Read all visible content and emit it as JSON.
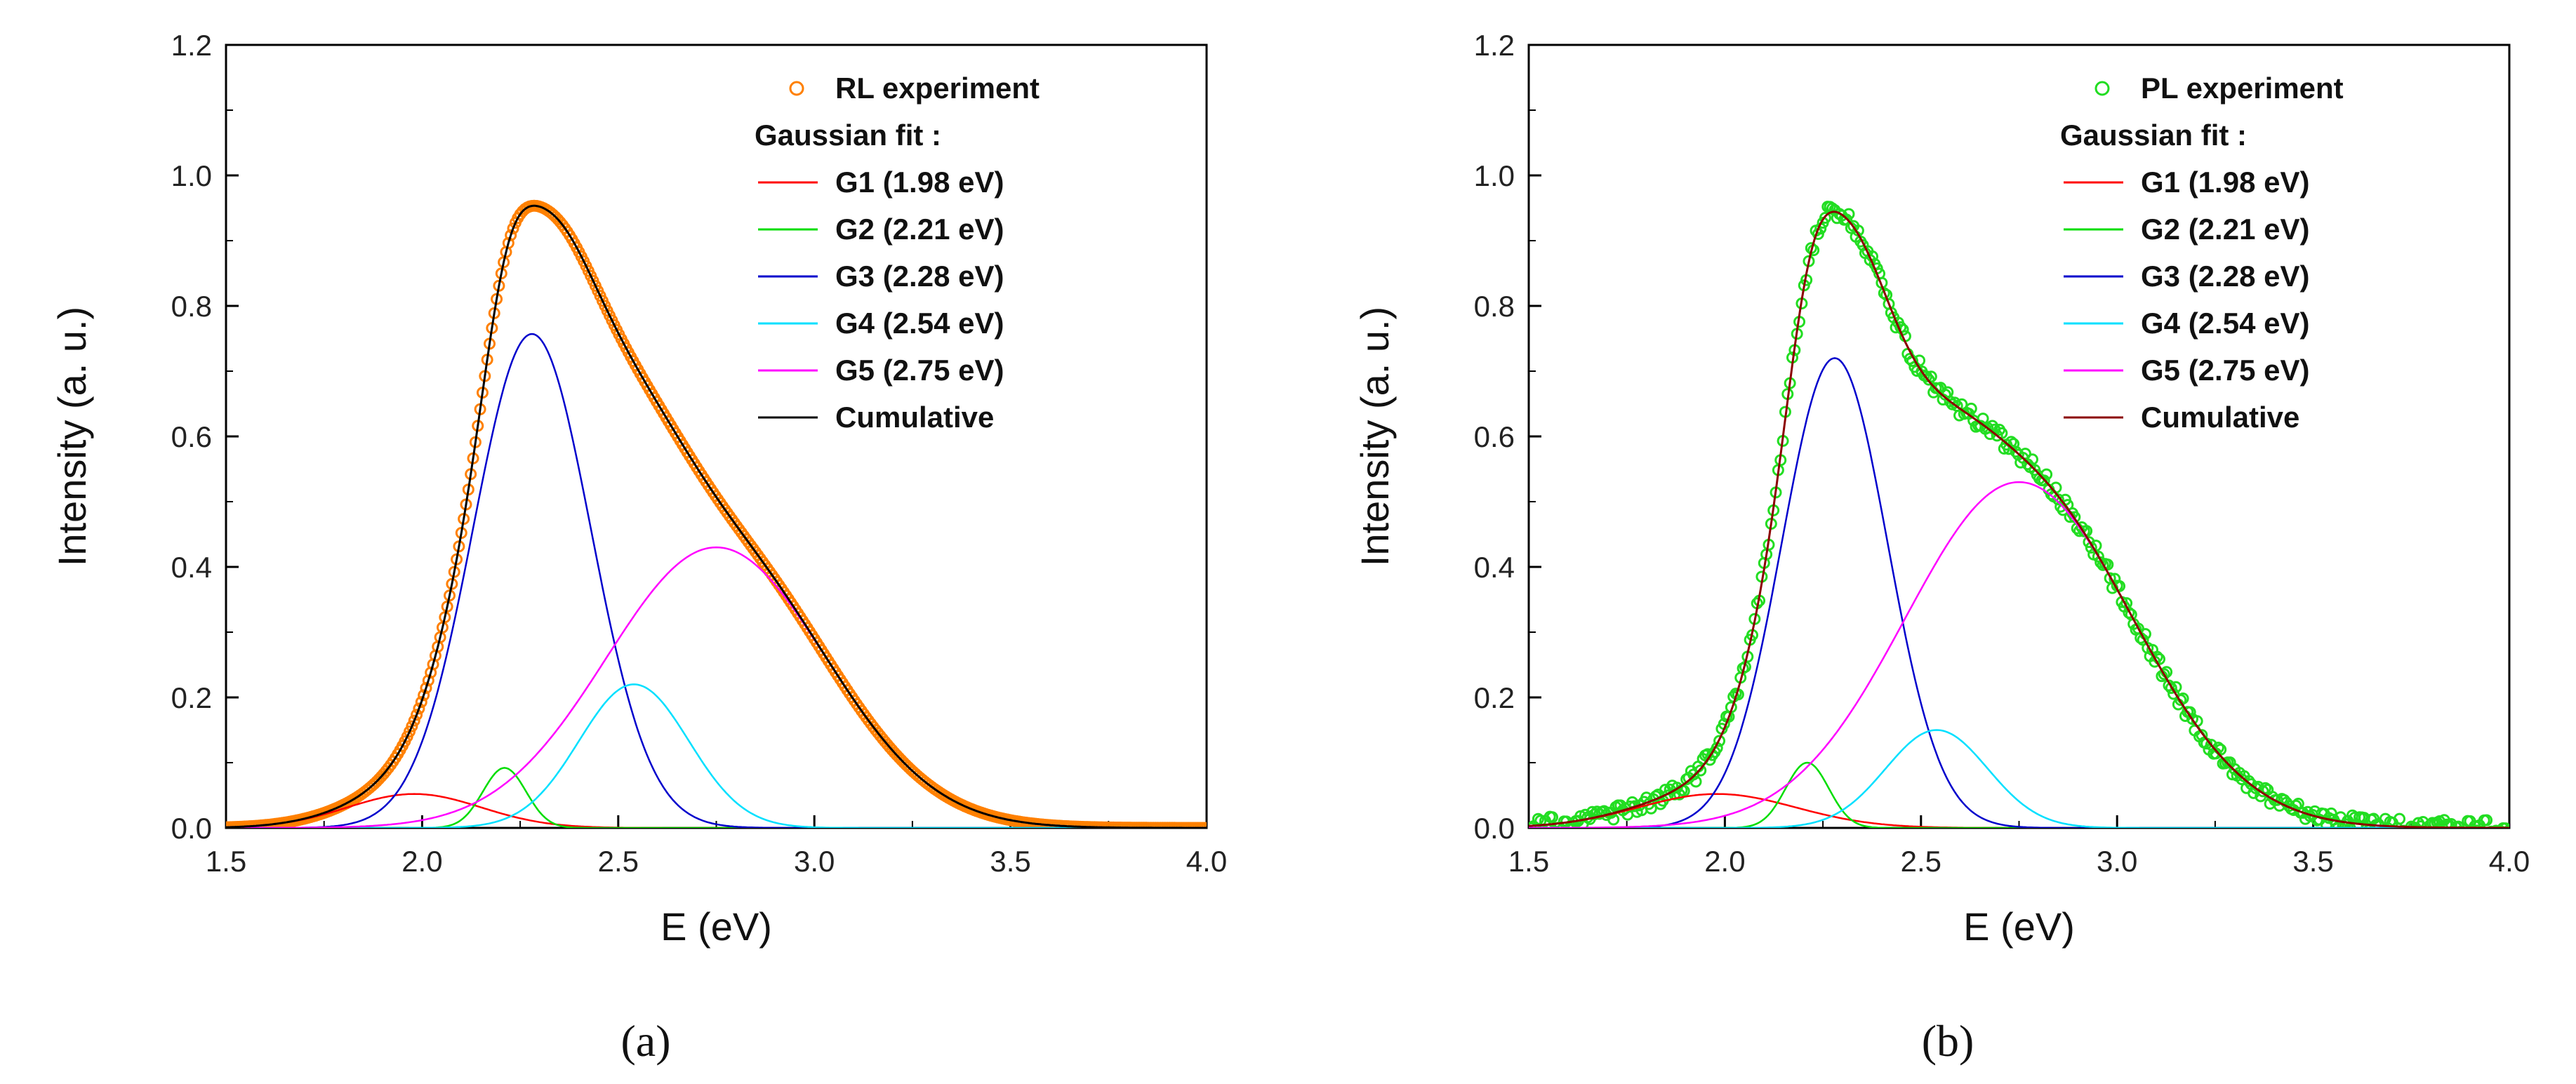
{
  "chart_data": [
    {
      "type": "line",
      "panel": "a",
      "caption": "(a)",
      "xlabel": "E (eV)",
      "ylabel": "Intensity (a. u.)",
      "xlim": [
        1.5,
        4.0
      ],
      "ylim": [
        0.0,
        1.2
      ],
      "xticks": [
        "1.5",
        "2.0",
        "2.5",
        "3.0",
        "3.5",
        "4.0"
      ],
      "yticks": [
        "0.0",
        "0.2",
        "0.4",
        "0.6",
        "0.8",
        "1.0",
        "1.2"
      ],
      "legend_position": "top-right",
      "experiment": {
        "name": "RL experiment",
        "color": "#ff8000",
        "marker": "open-circle"
      },
      "fit_header": "Gaussian fit :",
      "components": [
        {
          "name": "G1 (1.98 eV)",
          "center": 1.98,
          "amplitude": 0.052,
          "sigma": 0.17,
          "color": "#ff0000"
        },
        {
          "name": "G2 (2.21 eV)",
          "center": 2.21,
          "amplitude": 0.092,
          "sigma": 0.055,
          "color": "#00dd00"
        },
        {
          "name": "G3 (2.28 eV)",
          "center": 2.28,
          "amplitude": 0.757,
          "sigma": 0.15,
          "color": "#0000cc"
        },
        {
          "name": "G4 (2.54 eV)",
          "center": 2.54,
          "amplitude": 0.22,
          "sigma": 0.14,
          "color": "#00e0ff"
        },
        {
          "name": "G5 (2.75 eV)",
          "center": 2.75,
          "amplitude": 0.43,
          "sigma": 0.28,
          "color": "#ff00ff"
        }
      ],
      "cumulative": {
        "name": "Cumulative",
        "color": "#000000"
      }
    },
    {
      "type": "line",
      "panel": "b",
      "caption": "(b)",
      "xlabel": "E (eV)",
      "ylabel": "Intensity (a. u.)",
      "xlim": [
        1.5,
        4.0
      ],
      "ylim": [
        0.0,
        1.2
      ],
      "xticks": [
        "1.5",
        "2.0",
        "2.5",
        "3.0",
        "3.5",
        "4.0"
      ],
      "yticks": [
        "0.0",
        "0.2",
        "0.4",
        "0.6",
        "0.8",
        "1.0",
        "1.2"
      ],
      "legend_position": "top-right",
      "experiment": {
        "name": "PL experiment",
        "color": "#22dd22",
        "marker": "open-circle"
      },
      "fit_header": "Gaussian fit :",
      "components": [
        {
          "name": "G1 (1.98 eV)",
          "center": 1.98,
          "amplitude": 0.052,
          "sigma": 0.2,
          "color": "#ff0000"
        },
        {
          "name": "G2 (2.21 eV)",
          "center": 2.21,
          "amplitude": 0.1,
          "sigma": 0.055,
          "color": "#00dd00"
        },
        {
          "name": "G3 (2.28 eV)",
          "center": 2.28,
          "amplitude": 0.72,
          "sigma": 0.135,
          "color": "#0000cc"
        },
        {
          "name": "G4 (2.54 eV)",
          "center": 2.54,
          "amplitude": 0.15,
          "sigma": 0.13,
          "color": "#00e0ff"
        },
        {
          "name": "G5 (2.75 eV)",
          "center": 2.75,
          "amplitude": 0.53,
          "sigma": 0.29,
          "color": "#ff00ff"
        }
      ],
      "cumulative": {
        "name": "Cumulative",
        "color": "#8b0000"
      }
    }
  ]
}
